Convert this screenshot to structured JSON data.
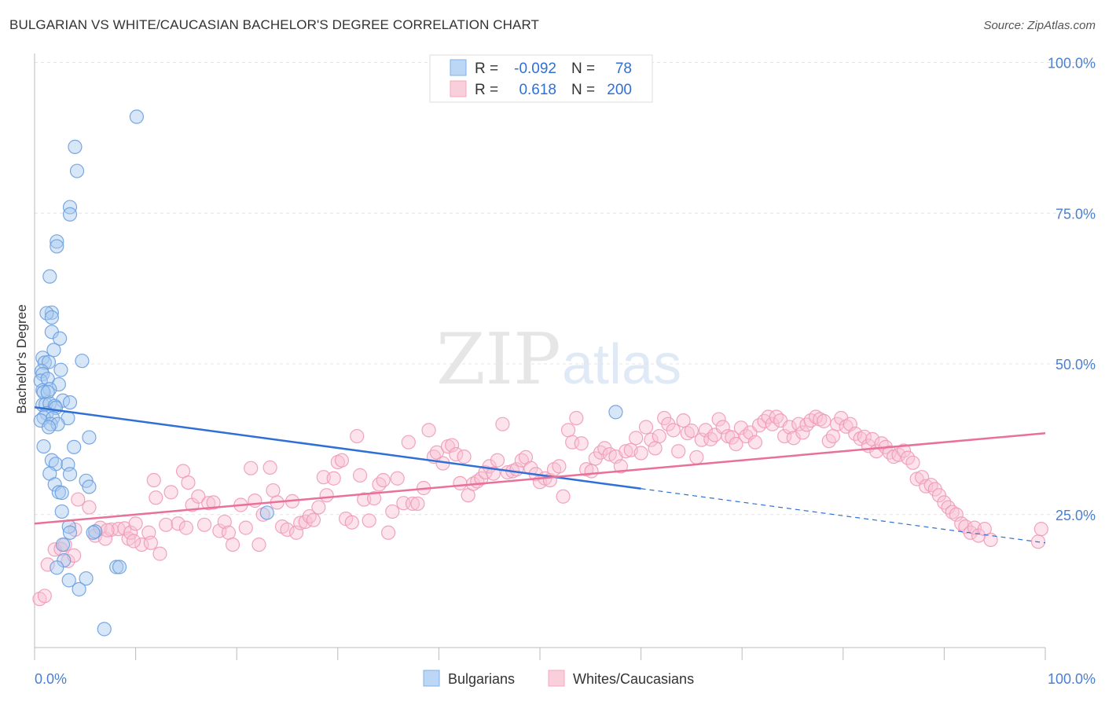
{
  "title": "BULGARIAN VS WHITE/CAUCASIAN BACHELOR'S DEGREE CORRELATION CHART",
  "source": "Source: ZipAtlas.com",
  "watermark": {
    "zip": "ZIP",
    "atlas": "atlas"
  },
  "legend_top": [
    {
      "r_label": "R =",
      "r_value": "-0.092",
      "n_label": "N =",
      "n_value": "78",
      "color": "#7fb0e8"
    },
    {
      "r_label": "R =",
      "r_value": "0.618",
      "n_label": "N =",
      "n_value": "200",
      "color": "#f4a7bf"
    }
  ],
  "legend_bottom": [
    {
      "label": "Bulgarians",
      "color": "#7fb0e8"
    },
    {
      "label": "Whites/Caucasians",
      "color": "#f4a7bf"
    }
  ],
  "chart_data": {
    "type": "scatter",
    "title": "BULGARIAN VS WHITE/CAUCASIAN BACHELOR'S DEGREE CORRELATION CHART",
    "xlabel": "",
    "ylabel": "Bachelor's Degree",
    "xlim": [
      0,
      100
    ],
    "ylim": [
      0,
      100
    ],
    "x_tick_labels": [
      "0.0%",
      "100.0%"
    ],
    "y_tick_labels": [
      "25.0%",
      "50.0%",
      "75.0%",
      "100.0%"
    ],
    "y_ticks": [
      25,
      50,
      75,
      100
    ],
    "grid": true,
    "legend_position": "top-center",
    "series": [
      {
        "name": "Bulgarians",
        "color": "#7fb0e8",
        "line_color": "#2f6fd6",
        "trend": {
          "x0": 0,
          "y0": 42.8,
          "x1": 60,
          "y1": 29.3,
          "dashed_to_x": 100,
          "dashed_to_y": 20.3
        },
        "points": [
          [
            10.1,
            91.0
          ],
          [
            4.0,
            86.0
          ],
          [
            4.2,
            82.0
          ],
          [
            3.5,
            76.0
          ],
          [
            3.5,
            74.8
          ],
          [
            2.2,
            70.3
          ],
          [
            2.2,
            69.5
          ],
          [
            1.5,
            64.5
          ],
          [
            1.7,
            58.5
          ],
          [
            1.2,
            58.4
          ],
          [
            1.7,
            57.7
          ],
          [
            1.7,
            55.3
          ],
          [
            2.5,
            54.2
          ],
          [
            1.9,
            52.3
          ],
          [
            0.8,
            51.0
          ],
          [
            1.0,
            50.2
          ],
          [
            1.4,
            50.3
          ],
          [
            4.7,
            50.5
          ],
          [
            0.7,
            48.8
          ],
          [
            2.6,
            49.0
          ],
          [
            0.8,
            48.3
          ],
          [
            0.6,
            47.2
          ],
          [
            1.3,
            47.5
          ],
          [
            2.4,
            46.6
          ],
          [
            0.8,
            45.6
          ],
          [
            1.5,
            45.8
          ],
          [
            0.9,
            45.3
          ],
          [
            1.3,
            45.3
          ],
          [
            2.8,
            43.9
          ],
          [
            3.5,
            43.6
          ],
          [
            0.8,
            43.2
          ],
          [
            1.1,
            43.3
          ],
          [
            1.5,
            43.4
          ],
          [
            2.0,
            43.0
          ],
          [
            2.1,
            42.7
          ],
          [
            1.2,
            41.8
          ],
          [
            0.9,
            41.1
          ],
          [
            1.8,
            41.0
          ],
          [
            3.3,
            41.0
          ],
          [
            0.6,
            40.6
          ],
          [
            1.6,
            40.0
          ],
          [
            2.3,
            40.0
          ],
          [
            1.4,
            39.5
          ],
          [
            5.4,
            37.8
          ],
          [
            0.9,
            36.3
          ],
          [
            3.9,
            36.2
          ],
          [
            1.7,
            34.0
          ],
          [
            2.1,
            33.4
          ],
          [
            3.3,
            33.3
          ],
          [
            1.5,
            31.8
          ],
          [
            3.5,
            31.7
          ],
          [
            5.1,
            30.6
          ],
          [
            2.0,
            30.0
          ],
          [
            5.4,
            29.6
          ],
          [
            2.4,
            28.7
          ],
          [
            2.7,
            28.6
          ],
          [
            2.7,
            25.5
          ],
          [
            3.4,
            23.0
          ],
          [
            3.5,
            22.0
          ],
          [
            6.0,
            22.2
          ],
          [
            5.8,
            22.0
          ],
          [
            2.8,
            20.0
          ],
          [
            2.9,
            17.4
          ],
          [
            2.2,
            16.2
          ],
          [
            8.1,
            16.3
          ],
          [
            8.4,
            16.3
          ],
          [
            3.4,
            14.1
          ],
          [
            5.1,
            14.4
          ],
          [
            4.4,
            12.6
          ],
          [
            6.9,
            6.0
          ],
          [
            57.5,
            42.0
          ],
          [
            23.0,
            25.3
          ]
        ]
      },
      {
        "name": "Whites/Caucasians",
        "color": "#f4a7bf",
        "line_color": "#e8709a",
        "trend": {
          "x0": 0,
          "y0": 23.5,
          "x1": 100,
          "y1": 38.5
        },
        "points": [
          [
            0.5,
            11.0
          ],
          [
            1.0,
            11.5
          ],
          [
            1.3,
            16.7
          ],
          [
            2.0,
            19.2
          ],
          [
            2.6,
            19.3
          ],
          [
            3.0,
            20.0
          ],
          [
            3.3,
            17.3
          ],
          [
            3.9,
            18.2
          ],
          [
            4.0,
            22.5
          ],
          [
            4.3,
            27.5
          ],
          [
            5.4,
            26.2
          ],
          [
            6.0,
            21.5
          ],
          [
            6.5,
            22.8
          ],
          [
            7.0,
            21.0
          ],
          [
            7.6,
            22.5
          ],
          [
            8.3,
            22.6
          ],
          [
            8.9,
            22.7
          ],
          [
            9.3,
            21.0
          ],
          [
            9.5,
            22.0
          ],
          [
            10.0,
            23.5
          ],
          [
            10.6,
            20.0
          ],
          [
            11.3,
            22.0
          ],
          [
            11.5,
            20.3
          ],
          [
            11.8,
            30.7
          ],
          [
            12.4,
            18.5
          ],
          [
            13.0,
            23.3
          ],
          [
            13.5,
            28.7
          ],
          [
            14.2,
            23.5
          ],
          [
            14.7,
            32.2
          ],
          [
            15.0,
            22.8
          ],
          [
            15.6,
            26.6
          ],
          [
            16.2,
            28.0
          ],
          [
            16.8,
            23.3
          ],
          [
            17.2,
            26.9
          ],
          [
            17.7,
            27.0
          ],
          [
            18.3,
            22.3
          ],
          [
            18.8,
            23.8
          ],
          [
            19.2,
            22.0
          ],
          [
            19.6,
            20.0
          ],
          [
            20.4,
            26.6
          ],
          [
            20.9,
            22.8
          ],
          [
            21.4,
            32.7
          ],
          [
            21.8,
            27.3
          ],
          [
            22.2,
            20.0
          ],
          [
            22.6,
            25.0
          ],
          [
            23.3,
            32.8
          ],
          [
            23.6,
            29.0
          ],
          [
            24.0,
            27.0
          ],
          [
            24.5,
            23.0
          ],
          [
            25.0,
            22.5
          ],
          [
            25.5,
            27.2
          ],
          [
            25.9,
            22.0
          ],
          [
            26.3,
            23.6
          ],
          [
            26.8,
            23.8
          ],
          [
            27.2,
            24.7
          ],
          [
            27.6,
            24.1
          ],
          [
            28.1,
            26.2
          ],
          [
            28.6,
            31.2
          ],
          [
            28.9,
            28.2
          ],
          [
            29.6,
            31.0
          ],
          [
            30.0,
            33.7
          ],
          [
            30.4,
            34.0
          ],
          [
            30.8,
            24.3
          ],
          [
            31.4,
            23.7
          ],
          [
            31.9,
            38.0
          ],
          [
            32.2,
            31.5
          ],
          [
            32.6,
            27.5
          ],
          [
            33.1,
            24.0
          ],
          [
            33.6,
            27.7
          ],
          [
            34.1,
            30.0
          ],
          [
            34.5,
            30.7
          ],
          [
            35.0,
            22.0
          ],
          [
            35.4,
            25.5
          ],
          [
            35.9,
            31.0
          ],
          [
            36.5,
            26.9
          ],
          [
            37.0,
            37.0
          ],
          [
            37.4,
            26.8
          ],
          [
            37.9,
            26.8
          ],
          [
            38.5,
            29.4
          ],
          [
            39.0,
            39.0
          ],
          [
            39.5,
            34.6
          ],
          [
            39.8,
            35.3
          ],
          [
            40.4,
            33.5
          ],
          [
            40.9,
            36.3
          ],
          [
            41.3,
            36.5
          ],
          [
            41.7,
            35.0
          ],
          [
            42.1,
            30.2
          ],
          [
            42.5,
            34.6
          ],
          [
            42.9,
            28.2
          ],
          [
            43.4,
            30.1
          ],
          [
            43.8,
            30.5
          ],
          [
            44.2,
            31.0
          ],
          [
            44.6,
            32.0
          ],
          [
            45.0,
            33.0
          ],
          [
            45.4,
            31.8
          ],
          [
            45.8,
            34.0
          ],
          [
            46.3,
            40.0
          ],
          [
            46.8,
            32.0
          ],
          [
            47.3,
            32.2
          ],
          [
            47.7,
            32.5
          ],
          [
            48.2,
            34.0
          ],
          [
            48.6,
            34.5
          ],
          [
            49.1,
            32.7
          ],
          [
            49.6,
            31.7
          ],
          [
            50.0,
            30.4
          ],
          [
            50.5,
            31.0
          ],
          [
            51.0,
            30.7
          ],
          [
            51.4,
            32.5
          ],
          [
            51.9,
            33.0
          ],
          [
            52.3,
            28.0
          ],
          [
            52.8,
            39.0
          ],
          [
            53.2,
            37.0
          ],
          [
            53.6,
            41.0
          ],
          [
            54.1,
            36.8
          ],
          [
            54.6,
            32.5
          ],
          [
            55.1,
            32.2
          ],
          [
            55.5,
            34.3
          ],
          [
            56.0,
            35.3
          ],
          [
            56.4,
            36.0
          ],
          [
            56.9,
            35.0
          ],
          [
            57.5,
            34.6
          ],
          [
            58.0,
            33.0
          ],
          [
            58.5,
            35.5
          ],
          [
            59.0,
            35.7
          ],
          [
            59.5,
            37.7
          ],
          [
            60.0,
            35.2
          ],
          [
            60.5,
            39.5
          ],
          [
            61.0,
            37.4
          ],
          [
            61.4,
            36.0
          ],
          [
            61.8,
            38.0
          ],
          [
            62.3,
            41.0
          ],
          [
            62.7,
            40.0
          ],
          [
            63.2,
            39.0
          ],
          [
            63.7,
            35.5
          ],
          [
            64.2,
            40.6
          ],
          [
            64.6,
            38.5
          ],
          [
            65.0,
            38.9
          ],
          [
            65.5,
            34.5
          ],
          [
            66.0,
            37.4
          ],
          [
            66.4,
            39.0
          ],
          [
            66.9,
            37.5
          ],
          [
            67.3,
            38.2
          ],
          [
            67.7,
            40.8
          ],
          [
            68.1,
            39.5
          ],
          [
            68.6,
            38.0
          ],
          [
            69.0,
            37.8
          ],
          [
            69.4,
            36.7
          ],
          [
            69.9,
            39.4
          ],
          [
            70.4,
            38.0
          ],
          [
            70.8,
            38.6
          ],
          [
            71.3,
            37.0
          ],
          [
            71.7,
            39.8
          ],
          [
            72.2,
            40.5
          ],
          [
            72.6,
            41.2
          ],
          [
            73.0,
            40.0
          ],
          [
            73.4,
            41.2
          ],
          [
            73.8,
            40.6
          ],
          [
            74.2,
            38.0
          ],
          [
            74.7,
            39.5
          ],
          [
            75.1,
            37.7
          ],
          [
            75.6,
            40.0
          ],
          [
            76.0,
            38.6
          ],
          [
            76.4,
            39.9
          ],
          [
            76.8,
            40.6
          ],
          [
            77.3,
            41.2
          ],
          [
            77.7,
            40.8
          ],
          [
            78.1,
            40.5
          ],
          [
            78.6,
            37.2
          ],
          [
            79.0,
            38.0
          ],
          [
            79.4,
            40.0
          ],
          [
            79.8,
            41.0
          ],
          [
            80.3,
            39.6
          ],
          [
            80.7,
            40.0
          ],
          [
            81.2,
            38.4
          ],
          [
            81.7,
            37.6
          ],
          [
            82.1,
            37.9
          ],
          [
            82.5,
            36.4
          ],
          [
            82.9,
            37.5
          ],
          [
            83.3,
            35.5
          ],
          [
            83.8,
            36.8
          ],
          [
            84.2,
            36.2
          ],
          [
            84.6,
            35.3
          ],
          [
            85.0,
            34.6
          ],
          [
            85.5,
            34.9
          ],
          [
            86.0,
            35.6
          ],
          [
            86.4,
            34.4
          ],
          [
            86.9,
            33.6
          ],
          [
            87.3,
            30.9
          ],
          [
            87.8,
            31.2
          ],
          [
            88.2,
            29.7
          ],
          [
            88.7,
            29.9
          ],
          [
            89.1,
            29.2
          ],
          [
            89.5,
            28.2
          ],
          [
            90.0,
            27.0
          ],
          [
            90.4,
            26.2
          ],
          [
            90.8,
            25.4
          ],
          [
            91.2,
            25.0
          ],
          [
            91.7,
            23.5
          ],
          [
            92.1,
            23.0
          ],
          [
            92.6,
            22.0
          ],
          [
            93.0,
            22.8
          ],
          [
            93.4,
            21.5
          ],
          [
            94.0,
            22.6
          ],
          [
            94.6,
            20.8
          ],
          [
            99.3,
            20.5
          ],
          [
            99.6,
            22.6
          ],
          [
            7.2,
            22.4
          ],
          [
            9.8,
            20.6
          ],
          [
            15.2,
            30.3
          ],
          [
            12.0,
            27.8
          ]
        ]
      }
    ]
  }
}
